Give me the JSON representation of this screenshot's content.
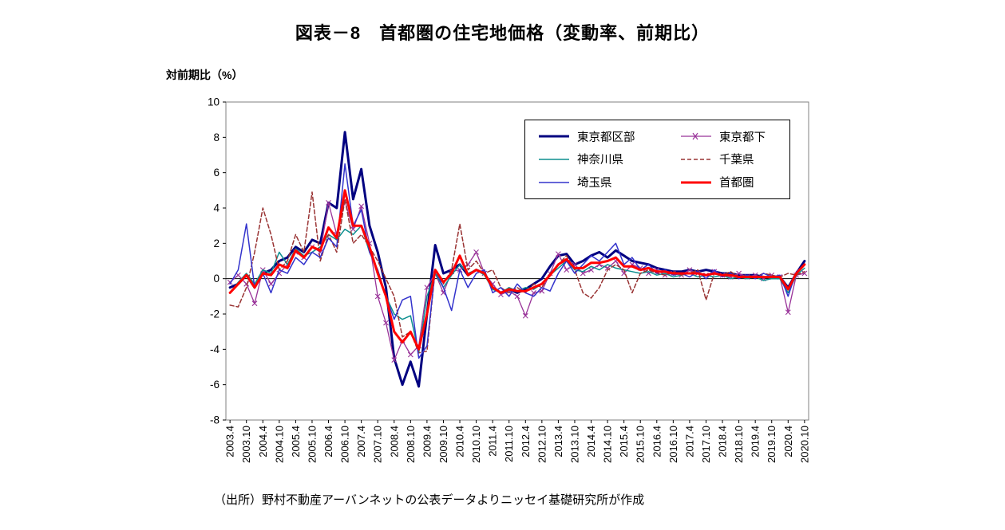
{
  "page": {
    "title": "図表－8　首都圏の住宅地価格（変動率、前期比）",
    "y_axis_unit_label": "対前期比（%）",
    "source_note": "（出所）野村不動産アーバンネットの公表データよりニッセイ基礎研究所が作成"
  },
  "chart_data": {
    "type": "line",
    "title": "図表－8　首都圏の住宅地価格（変動率、前期比）",
    "xlabel": "",
    "ylabel": "対前期比（%）",
    "ylim": [
      -8,
      10
    ],
    "y_ticks": [
      10,
      8,
      6,
      4,
      2,
      0,
      -2,
      -4,
      -6,
      -8
    ],
    "grid": false,
    "legend_position": "top-right-inside",
    "x": [
      "2003.4",
      "2003.7",
      "2003.10",
      "2004.1",
      "2004.4",
      "2004.7",
      "2004.10",
      "2005.1",
      "2005.4",
      "2005.7",
      "2005.10",
      "2006.1",
      "2006.4",
      "2006.7",
      "2006.10",
      "2007.1",
      "2007.4",
      "2007.7",
      "2007.10",
      "2008.1",
      "2008.4",
      "2008.7",
      "2008.10",
      "2009.1",
      "2009.4",
      "2009.7",
      "2009.10",
      "2010.1",
      "2010.4",
      "2010.7",
      "2010.10",
      "2011.1",
      "2011.4",
      "2011.7",
      "2011.10",
      "2012.1",
      "2012.4",
      "2012.7",
      "2012.10",
      "2013.1",
      "2013.4",
      "2013.7",
      "2013.10",
      "2014.1",
      "2014.4",
      "2014.7",
      "2014.10",
      "2015.1",
      "2015.4",
      "2015.7",
      "2015.10",
      "2016.1",
      "2016.4",
      "2016.7",
      "2016.10",
      "2017.1",
      "2017.4",
      "2017.7",
      "2017.10",
      "2018.1",
      "2018.4",
      "2018.7",
      "2018.10",
      "2019.1",
      "2019.4",
      "2019.7",
      "2019.10",
      "2020.1",
      "2020.4",
      "2020.7",
      "2020.10"
    ],
    "x_tick_labels": [
      "2003.4",
      "2003.10",
      "2004.4",
      "2004.10",
      "2005.4",
      "2005.10",
      "2006.4",
      "2006.10",
      "2007.4",
      "2007.10",
      "2008.4",
      "2008.10",
      "2009.4",
      "2009.10",
      "2010.4",
      "2010.10",
      "2011.4",
      "2011.10",
      "2012.4",
      "2012.10",
      "2013.4",
      "2013.10",
      "2014.4",
      "2014.10",
      "2015.4",
      "2015.10",
      "2016.4",
      "2016.10",
      "2017.4",
      "2017.10",
      "2018.4",
      "2018.10",
      "2019.4",
      "2019.10",
      "2020.4",
      "2020.10"
    ],
    "series": [
      {
        "name": "東京都区部",
        "color": "#000080",
        "width": 3,
        "dash": null,
        "marker": null,
        "values": [
          -0.5,
          -0.3,
          0.2,
          -0.5,
          0.3,
          0.5,
          1.0,
          1.2,
          1.8,
          1.5,
          2.2,
          2.0,
          4.3,
          4.0,
          8.3,
          4.5,
          6.2,
          3.0,
          1.5,
          -0.5,
          -4.5,
          -6.0,
          -4.7,
          -6.1,
          -2.0,
          1.9,
          0.3,
          0.5,
          0.8,
          0.2,
          0.5,
          0.3,
          -0.5,
          -0.8,
          -0.6,
          -0.8,
          -0.6,
          -0.3,
          0.0,
          0.7,
          1.3,
          1.4,
          0.8,
          1.0,
          1.3,
          1.5,
          1.2,
          1.6,
          1.3,
          1.0,
          0.9,
          0.8,
          0.6,
          0.5,
          0.4,
          0.4,
          0.5,
          0.4,
          0.5,
          0.4,
          0.3,
          0.3,
          0.2,
          0.2,
          0.2,
          0.1,
          0.1,
          0.1,
          -0.5,
          0.3,
          1.0
        ]
      },
      {
        "name": "東京都下",
        "color": "#993399",
        "width": 1.3,
        "dash": null,
        "marker": "x",
        "values": [
          -0.2,
          0.2,
          -0.3,
          -1.4,
          0.5,
          -0.3,
          0.3,
          0.8,
          1.5,
          1.2,
          1.8,
          1.5,
          4.3,
          2.5,
          4.4,
          2.8,
          4.1,
          2.0,
          -1.0,
          -2.5,
          -4.6,
          -3.5,
          -4.3,
          -3.8,
          -0.5,
          0.3,
          -0.8,
          0.4,
          0.5,
          0.8,
          1.5,
          0.3,
          -0.3,
          -0.9,
          -0.7,
          -1.0,
          -2.1,
          -0.8,
          -0.7,
          0.3,
          1.4,
          0.5,
          0.8,
          0.3,
          0.5,
          0.8,
          0.6,
          1.0,
          0.3,
          0.8,
          0.6,
          0.3,
          0.5,
          0.2,
          0.3,
          0.2,
          0.5,
          0.3,
          0.2,
          0.4,
          0.2,
          0.1,
          0.3,
          0.1,
          0.2,
          0.0,
          0.2,
          0.1,
          -1.9,
          0.2,
          0.3
        ]
      },
      {
        "name": "神奈川県",
        "color": "#0d8f8f",
        "width": 1.5,
        "dash": null,
        "marker": null,
        "values": [
          -0.8,
          -0.2,
          0.3,
          -0.3,
          0.5,
          0.3,
          1.5,
          0.8,
          1.7,
          1.3,
          1.5,
          1.8,
          2.5,
          2.2,
          2.8,
          2.5,
          3.0,
          1.5,
          0.5,
          -1.0,
          -2.0,
          -2.3,
          -2.1,
          -4.2,
          -1.0,
          0.3,
          -0.5,
          0.2,
          0.8,
          0.3,
          0.5,
          0.2,
          -0.6,
          -0.8,
          -0.5,
          -0.7,
          -0.5,
          -0.6,
          -0.3,
          0.2,
          0.6,
          1.0,
          0.5,
          0.4,
          0.7,
          0.5,
          0.8,
          0.6,
          0.5,
          0.4,
          0.3,
          0.4,
          0.2,
          0.3,
          0.1,
          0.2,
          0.3,
          0.1,
          0.2,
          0.1,
          0.2,
          0.0,
          0.1,
          0.0,
          0.1,
          -0.1,
          0.0,
          0.0,
          -0.8,
          0.2,
          0.6
        ]
      },
      {
        "name": "千葉県",
        "color": "#993333",
        "width": 1.5,
        "dash": "5 3",
        "marker": null,
        "values": [
          -1.5,
          -1.6,
          -0.5,
          1.5,
          4.0,
          2.5,
          0.5,
          1.0,
          2.5,
          1.5,
          4.9,
          1.0,
          2.5,
          1.5,
          4.5,
          2.0,
          2.5,
          1.8,
          1.0,
          0.0,
          -1.0,
          -3.3,
          -3.0,
          -4.2,
          -4.1,
          0.5,
          -0.3,
          0.5,
          3.1,
          0.5,
          1.0,
          0.3,
          0.5,
          -0.5,
          -0.8,
          -0.5,
          -0.8,
          -0.3,
          -0.5,
          0.3,
          0.8,
          1.3,
          0.5,
          -0.8,
          -1.1,
          -0.5,
          0.5,
          0.8,
          0.5,
          -0.8,
          0.3,
          0.5,
          0.3,
          0.2,
          0.4,
          0.2,
          0.3,
          0.5,
          -1.2,
          0.3,
          0.2,
          0.4,
          0.1,
          0.2,
          0.1,
          0.3,
          0.2,
          0.1,
          0.3,
          0.2,
          0.4
        ]
      },
      {
        "name": "埼玉県",
        "color": "#3333cc",
        "width": 1.5,
        "dash": null,
        "marker": null,
        "values": [
          -0.3,
          0.5,
          3.1,
          -0.5,
          0.3,
          -0.8,
          0.5,
          0.3,
          1.2,
          0.8,
          1.5,
          1.2,
          2.3,
          1.8,
          6.5,
          3.0,
          3.9,
          1.5,
          0.5,
          -1.0,
          -2.3,
          -1.2,
          -1.0,
          -4.5,
          -3.8,
          0.5,
          -0.5,
          -1.8,
          0.5,
          -0.5,
          0.3,
          0.5,
          -0.8,
          -0.5,
          -1.0,
          -0.3,
          -0.8,
          -1.0,
          -0.5,
          -0.7,
          0.3,
          1.0,
          0.3,
          0.8,
          1.3,
          1.0,
          1.5,
          2.0,
          0.8,
          1.2,
          0.5,
          0.8,
          0.3,
          0.5,
          0.2,
          0.3,
          0.1,
          0.4,
          0.0,
          0.5,
          0.1,
          0.3,
          0.0,
          0.2,
          0.0,
          0.3,
          0.1,
          0.2,
          -1.0,
          0.4,
          0.8
        ]
      },
      {
        "name": "首都圏",
        "color": "#ff0000",
        "width": 3,
        "dash": null,
        "marker": null,
        "values": [
          -0.8,
          -0.3,
          0.2,
          -0.5,
          0.3,
          0.2,
          0.8,
          0.6,
          1.6,
          1.2,
          1.8,
          1.6,
          2.9,
          2.3,
          5.0,
          3.0,
          3.0,
          1.8,
          0.3,
          -1.0,
          -3.0,
          -3.6,
          -3.0,
          -4.0,
          -2.0,
          0.5,
          -0.2,
          0.3,
          1.3,
          0.2,
          0.5,
          0.3,
          -0.5,
          -0.8,
          -0.6,
          -0.7,
          -0.7,
          -0.5,
          -0.3,
          0.2,
          0.8,
          1.1,
          0.6,
          0.6,
          0.9,
          0.9,
          1.0,
          1.2,
          0.7,
          0.7,
          0.5,
          0.6,
          0.4,
          0.4,
          0.3,
          0.3,
          0.3,
          0.3,
          0.2,
          0.3,
          0.2,
          0.2,
          0.1,
          0.1,
          0.1,
          0.1,
          0.1,
          0.1,
          -0.6,
          0.3,
          0.8
        ]
      }
    ],
    "legend_order": [
      [
        "東京都区部",
        "東京都下"
      ],
      [
        "神奈川県",
        "千葉県"
      ],
      [
        "埼玉県",
        "首都圏"
      ]
    ]
  }
}
